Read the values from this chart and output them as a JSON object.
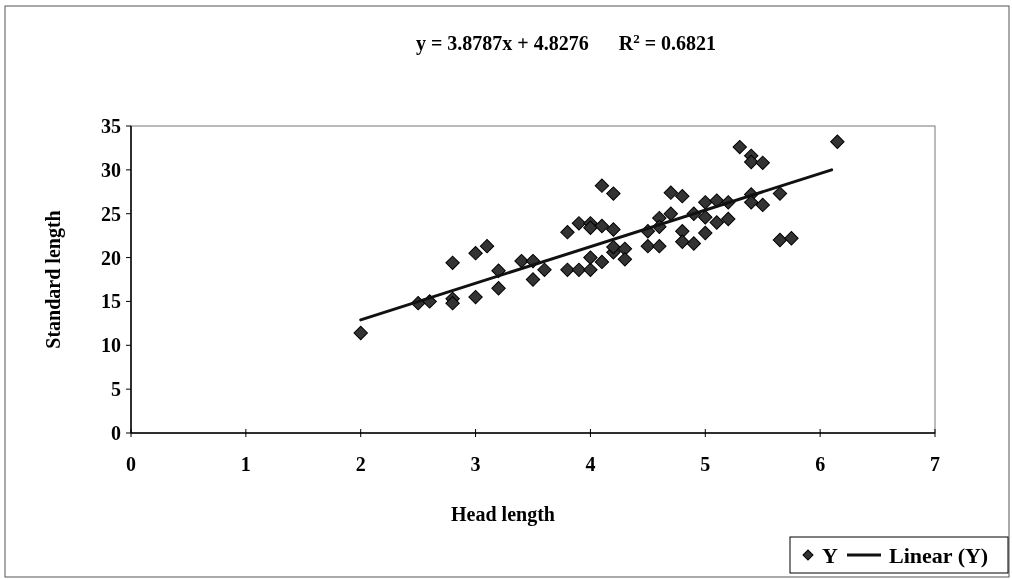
{
  "chart_data": {
    "type": "scatter",
    "annotations": [
      "y = 3.8787x + 4.8276      R$^{2}$ = 0.6821"
    ],
    "xlabel": "Head length",
    "ylabel": "Standard length",
    "xlim": [
      0,
      7
    ],
    "xticks": [
      0,
      1,
      2,
      3,
      4,
      5,
      6,
      7
    ],
    "ylim": [
      0,
      35
    ],
    "yticks": [
      0,
      5,
      10,
      15,
      20,
      25,
      30,
      35
    ],
    "grid": false,
    "legend": "bottom right",
    "series": [
      {
        "name": "Y",
        "color": "#333333",
        "marker": "diamond",
        "x": [
          2.0,
          2.5,
          2.6,
          2.8,
          2.8,
          2.8,
          3.0,
          3.0,
          3.1,
          3.2,
          3.2,
          3.4,
          3.5,
          3.5,
          3.6,
          3.8,
          3.8,
          3.9,
          3.9,
          4.0,
          4.0,
          4.0,
          4.0,
          4.1,
          4.1,
          4.1,
          4.2,
          4.2,
          4.2,
          4.2,
          4.3,
          4.3,
          4.5,
          4.5,
          4.6,
          4.6,
          4.6,
          4.7,
          4.7,
          4.8,
          4.8,
          4.8,
          4.9,
          4.9,
          5.0,
          5.0,
          5.0,
          5.1,
          5.1,
          5.2,
          5.2,
          5.3,
          5.4,
          5.4,
          5.4,
          5.4,
          5.5,
          5.5,
          5.65,
          5.65,
          5.75,
          6.15
        ],
        "values": [
          11.4,
          14.8,
          15.0,
          19.4,
          15.3,
          14.8,
          20.5,
          15.5,
          21.3,
          18.5,
          16.5,
          19.6,
          19.6,
          17.5,
          18.6,
          22.9,
          18.6,
          23.9,
          18.6,
          23.9,
          23.4,
          18.6,
          20.0,
          28.2,
          23.6,
          19.5,
          27.3,
          23.2,
          20.6,
          21.2,
          21.0,
          19.8,
          23.0,
          21.3,
          24.5,
          23.5,
          21.3,
          27.4,
          25.0,
          27.0,
          23.0,
          21.8,
          25.0,
          21.6,
          26.3,
          24.6,
          22.8,
          26.5,
          24.0,
          26.3,
          24.4,
          32.6,
          31.6,
          30.9,
          27.2,
          26.3,
          30.8,
          26.0,
          27.3,
          22.0,
          22.2,
          33.2
        ]
      },
      {
        "name": "Linear (Y)",
        "type": "line",
        "color": "#111111",
        "marker": "none",
        "line_style": "solid",
        "x": [
          2.0,
          6.1
        ],
        "values": [
          12.9,
          30.0
        ]
      }
    ]
  }
}
